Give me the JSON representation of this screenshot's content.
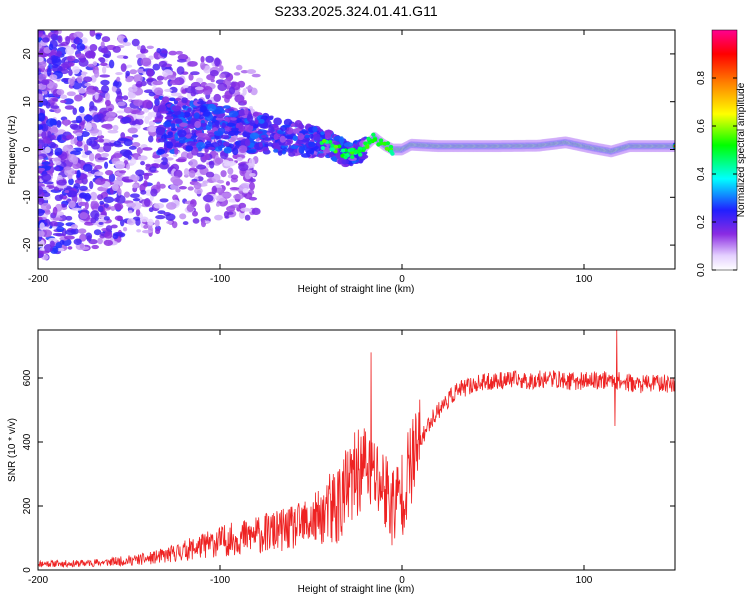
{
  "title": "S233.2025.324.01.41.G11",
  "chart_data": [
    {
      "type": "heatmap",
      "xlabel": "Height of straight line (km)",
      "ylabel": "Frequency (Hz)",
      "xlim": [
        -200,
        150
      ],
      "ylim": [
        -25,
        25
      ],
      "x_ticks": [
        -200,
        -100,
        0,
        100
      ],
      "y_ticks": [
        20,
        10,
        0,
        -10,
        -20
      ],
      "colorbar": {
        "label": "Normalized spectral amplitude",
        "range": [
          0,
          1
        ],
        "ticks": [
          0.0,
          0.2,
          0.4,
          0.6,
          0.8
        ]
      },
      "ridge": [
        {
          "x": -130,
          "f": 5
        },
        {
          "x": -110,
          "f": 5
        },
        {
          "x": -90,
          "f": 4
        },
        {
          "x": -70,
          "f": 3
        },
        {
          "x": -55,
          "f": 2
        },
        {
          "x": -40,
          "f": 1
        },
        {
          "x": -30,
          "f": -1
        },
        {
          "x": -22,
          "f": 0
        },
        {
          "x": -15,
          "f": 2.5
        },
        {
          "x": -10,
          "f": 1
        },
        {
          "x": -5,
          "f": 0
        },
        {
          "x": 0,
          "f": 0
        },
        {
          "x": 5,
          "f": 1
        },
        {
          "x": 20,
          "f": 0.7
        },
        {
          "x": 50,
          "f": 0.7
        },
        {
          "x": 75,
          "f": 0.8
        },
        {
          "x": 90,
          "f": 1.5
        },
        {
          "x": 105,
          "f": 0.3
        },
        {
          "x": 115,
          "f": -0.4
        },
        {
          "x": 125,
          "f": 0.7
        },
        {
          "x": 150,
          "f": 0.7
        }
      ]
    },
    {
      "type": "line",
      "xlabel": "Height of straight line (km)",
      "ylabel": "SNR (10 * v/v)",
      "xlim": [
        -200,
        150
      ],
      "ylim": [
        0,
        750
      ],
      "x_ticks": [
        -200,
        -100,
        0,
        100
      ],
      "y_ticks": [
        0,
        200,
        400,
        600
      ],
      "color": "#ee2222",
      "series": [
        {
          "name": "SNR",
          "x": [
            -200,
            -180,
            -160,
            -140,
            -130,
            -120,
            -110,
            -100,
            -90,
            -80,
            -70,
            -60,
            -50,
            -40,
            -35,
            -30,
            -25,
            -20,
            -15,
            -10,
            -5,
            0,
            5,
            10,
            15,
            20,
            25,
            30,
            40,
            50,
            60,
            70,
            80,
            90,
            100,
            110,
            120,
            130,
            140,
            150
          ],
          "y": [
            20,
            20,
            25,
            35,
            45,
            60,
            75,
            90,
            100,
            110,
            120,
            130,
            150,
            180,
            210,
            250,
            300,
            330,
            290,
            260,
            200,
            240,
            330,
            400,
            460,
            500,
            530,
            560,
            580,
            590,
            595,
            590,
            600,
            590,
            590,
            595,
            590,
            580,
            585,
            580
          ]
        }
      ],
      "spikes": [
        {
          "x": -17,
          "y": 680
        },
        {
          "x": 118,
          "y": 750
        },
        {
          "x": 117,
          "y": 450
        }
      ]
    }
  ]
}
